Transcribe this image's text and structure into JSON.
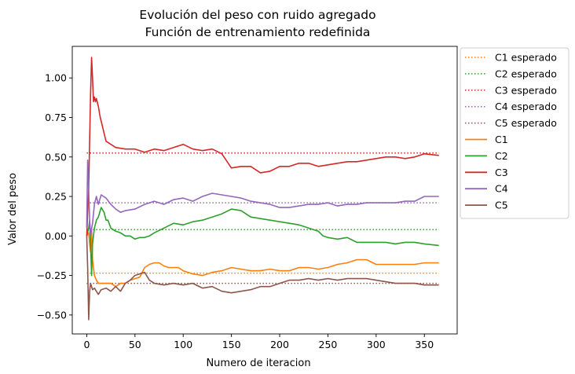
{
  "chart_data": {
    "type": "line",
    "title": [
      "Evolución del peso con ruido agregado",
      "Función de entrenamiento redefinida"
    ],
    "xlabel": "Numero de iteracion",
    "ylabel": "Valor del peso",
    "xlim": [
      -15,
      384
    ],
    "ylim": [
      -0.62,
      1.2
    ],
    "xticks": [
      0,
      50,
      100,
      150,
      200,
      250,
      300,
      350
    ],
    "xtick_labels": [
      "0",
      "50",
      "100",
      "150",
      "200",
      "250",
      "300",
      "350"
    ],
    "yticks": [
      -0.5,
      -0.25,
      0.0,
      0.25,
      0.5,
      0.75,
      1.0
    ],
    "ytick_labels": [
      "−0.50",
      "−0.25",
      "0.00",
      "0.25",
      "0.50",
      "0.75",
      "1.00"
    ],
    "grid": false,
    "legend_position": "outside-right-top",
    "expected": [
      {
        "name": "C1 esperado",
        "value": -0.235,
        "x": [
          0,
          365
        ],
        "color": "#ff7f0e"
      },
      {
        "name": "C2 esperado",
        "value": 0.04,
        "x": [
          0,
          365
        ],
        "color": "#2ca02c"
      },
      {
        "name": "C3 esperado",
        "value": 0.525,
        "x": [
          0,
          365
        ],
        "color": "#d62728"
      },
      {
        "name": "C4 esperado",
        "value": 0.21,
        "x": [
          0,
          365
        ],
        "color": "#9467bd"
      },
      {
        "name": "C5 esperado",
        "value": -0.3,
        "x": [
          0,
          365
        ],
        "color": "#8c564b"
      }
    ],
    "series": [
      {
        "name": "C1",
        "color": "#ff7f0e",
        "x": [
          0,
          2,
          3,
          4,
          5,
          6,
          8,
          10,
          12,
          15,
          20,
          25,
          30,
          35,
          40,
          45,
          50,
          55,
          60,
          65,
          70,
          75,
          80,
          85,
          90,
          95,
          100,
          110,
          120,
          130,
          140,
          150,
          160,
          170,
          180,
          190,
          200,
          210,
          220,
          230,
          240,
          250,
          260,
          270,
          280,
          290,
          300,
          310,
          320,
          330,
          340,
          350,
          365
        ],
        "y": [
          0.0,
          0.02,
          -0.05,
          -0.1,
          0.05,
          -0.15,
          -0.25,
          -0.28,
          -0.3,
          -0.3,
          -0.3,
          -0.3,
          -0.32,
          -0.3,
          -0.3,
          -0.28,
          -0.27,
          -0.26,
          -0.2,
          -0.18,
          -0.17,
          -0.17,
          -0.19,
          -0.2,
          -0.2,
          -0.2,
          -0.22,
          -0.24,
          -0.25,
          -0.23,
          -0.22,
          -0.2,
          -0.21,
          -0.22,
          -0.22,
          -0.21,
          -0.22,
          -0.22,
          -0.2,
          -0.2,
          -0.21,
          -0.2,
          -0.18,
          -0.17,
          -0.15,
          -0.15,
          -0.18,
          -0.18,
          -0.18,
          -0.18,
          -0.18,
          -0.17,
          -0.17
        ]
      },
      {
        "name": "C2",
        "color": "#2ca02c",
        "x": [
          0,
          2,
          3,
          4,
          5,
          6,
          8,
          10,
          12,
          15,
          18,
          20,
          22,
          25,
          30,
          35,
          40,
          45,
          50,
          55,
          60,
          65,
          70,
          80,
          90,
          100,
          110,
          120,
          130,
          140,
          150,
          160,
          170,
          180,
          190,
          200,
          210,
          220,
          230,
          240,
          245,
          250,
          260,
          270,
          280,
          290,
          300,
          310,
          320,
          330,
          340,
          350,
          365
        ],
        "y": [
          0.0,
          0.05,
          0.1,
          -0.05,
          -0.25,
          -0.05,
          0.05,
          0.1,
          0.12,
          0.18,
          0.15,
          0.1,
          0.1,
          0.05,
          0.03,
          0.02,
          0.0,
          0.0,
          -0.02,
          -0.01,
          -0.01,
          0.0,
          0.02,
          0.05,
          0.08,
          0.07,
          0.09,
          0.1,
          0.12,
          0.14,
          0.17,
          0.16,
          0.12,
          0.11,
          0.1,
          0.09,
          0.08,
          0.07,
          0.05,
          0.03,
          0.0,
          -0.01,
          -0.02,
          -0.01,
          -0.04,
          -0.04,
          -0.04,
          -0.04,
          -0.05,
          -0.04,
          -0.04,
          -0.05,
          -0.06
        ]
      },
      {
        "name": "C3",
        "color": "#d62728",
        "x": [
          0,
          2,
          3,
          4,
          5,
          6,
          7,
          8,
          9,
          10,
          12,
          14,
          16,
          18,
          20,
          25,
          30,
          40,
          50,
          60,
          70,
          80,
          90,
          100,
          110,
          120,
          130,
          140,
          150,
          160,
          170,
          180,
          190,
          200,
          210,
          220,
          230,
          240,
          250,
          260,
          270,
          280,
          290,
          300,
          310,
          320,
          330,
          340,
          350,
          365
        ],
        "y": [
          0.0,
          0.3,
          0.6,
          0.9,
          1.13,
          1.0,
          0.85,
          0.88,
          0.85,
          0.87,
          0.82,
          0.75,
          0.7,
          0.65,
          0.6,
          0.58,
          0.56,
          0.55,
          0.55,
          0.53,
          0.55,
          0.54,
          0.56,
          0.58,
          0.55,
          0.54,
          0.55,
          0.52,
          0.43,
          0.44,
          0.44,
          0.4,
          0.41,
          0.44,
          0.44,
          0.46,
          0.46,
          0.44,
          0.45,
          0.46,
          0.47,
          0.47,
          0.48,
          0.49,
          0.5,
          0.5,
          0.49,
          0.5,
          0.52,
          0.51
        ]
      },
      {
        "name": "C4",
        "color": "#9467bd",
        "x": [
          0,
          1,
          2,
          3,
          4,
          5,
          6,
          8,
          10,
          12,
          15,
          20,
          25,
          30,
          35,
          40,
          50,
          60,
          70,
          80,
          90,
          100,
          110,
          120,
          130,
          140,
          150,
          160,
          170,
          180,
          190,
          200,
          210,
          220,
          230,
          240,
          250,
          260,
          270,
          280,
          290,
          300,
          310,
          320,
          330,
          340,
          350,
          365
        ],
        "y": [
          0.05,
          0.48,
          0.3,
          0.1,
          0.0,
          0.05,
          0.08,
          0.2,
          0.25,
          0.2,
          0.26,
          0.24,
          0.2,
          0.17,
          0.15,
          0.16,
          0.17,
          0.2,
          0.22,
          0.2,
          0.23,
          0.24,
          0.22,
          0.25,
          0.27,
          0.26,
          0.25,
          0.24,
          0.22,
          0.21,
          0.2,
          0.18,
          0.18,
          0.19,
          0.2,
          0.2,
          0.21,
          0.19,
          0.2,
          0.2,
          0.21,
          0.21,
          0.21,
          0.21,
          0.22,
          0.22,
          0.25,
          0.25
        ]
      },
      {
        "name": "C5",
        "color": "#8c564b",
        "x": [
          0,
          1,
          2,
          3,
          4,
          5,
          6,
          8,
          10,
          12,
          15,
          20,
          25,
          30,
          35,
          40,
          45,
          50,
          55,
          60,
          65,
          70,
          80,
          90,
          100,
          110,
          120,
          130,
          140,
          150,
          160,
          170,
          180,
          190,
          200,
          210,
          220,
          230,
          240,
          250,
          260,
          270,
          280,
          290,
          300,
          310,
          320,
          330,
          340,
          350,
          365
        ],
        "y": [
          0.0,
          -0.2,
          -0.53,
          -0.35,
          -0.3,
          -0.32,
          -0.34,
          -0.33,
          -0.35,
          -0.37,
          -0.34,
          -0.33,
          -0.35,
          -0.32,
          -0.35,
          -0.3,
          -0.28,
          -0.25,
          -0.24,
          -0.23,
          -0.28,
          -0.3,
          -0.31,
          -0.3,
          -0.31,
          -0.3,
          -0.33,
          -0.32,
          -0.35,
          -0.36,
          -0.35,
          -0.34,
          -0.32,
          -0.32,
          -0.3,
          -0.28,
          -0.28,
          -0.27,
          -0.28,
          -0.27,
          -0.28,
          -0.27,
          -0.27,
          -0.27,
          -0.28,
          -0.29,
          -0.3,
          -0.3,
          -0.3,
          -0.31,
          -0.31
        ]
      }
    ]
  }
}
